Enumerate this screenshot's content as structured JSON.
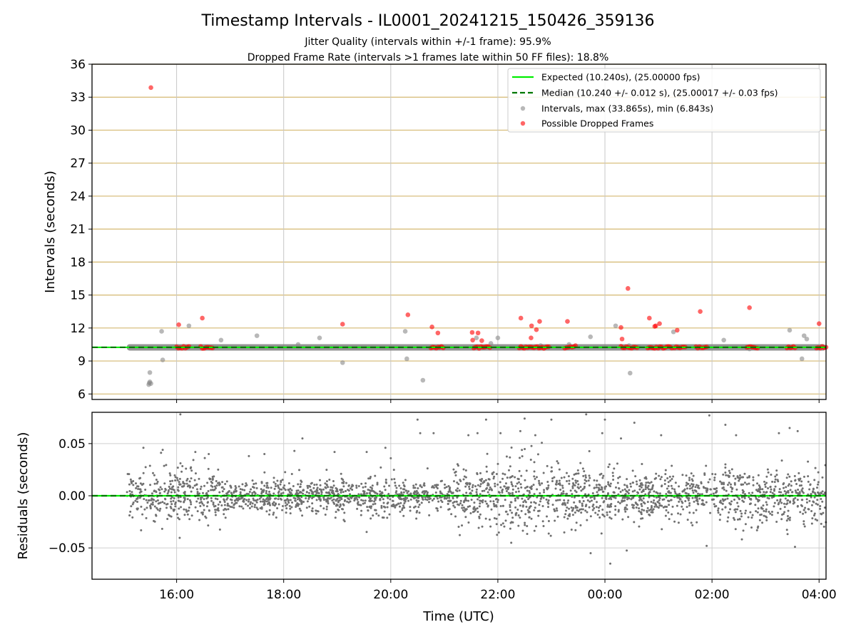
{
  "chart_data": [
    {
      "type": "scatter",
      "title": "Timestamp Intervals - IL0001_20241215_150426_359136",
      "subtitle_lines": [
        "Jitter Quality (intervals within +/-1 frame): 95.9%",
        "Dropped Frame Rate (intervals >1 frames late within 50 FF files): 18.8%"
      ],
      "xlabel": "",
      "ylabel": "Intervals (seconds)",
      "ylim": [
        5.5,
        36
      ],
      "xlim": [
        14.42,
        28.13
      ],
      "yticks": [
        6,
        9,
        12,
        15,
        18,
        21,
        24,
        27,
        30,
        33,
        36
      ],
      "ytick_labels": [
        "6",
        "9",
        "12",
        "15",
        "18",
        "21",
        "24",
        "27",
        "30",
        "33",
        "36"
      ],
      "horizontal_grid_color": "#d4b870",
      "vertical_grid_color": "#c8c8c8",
      "legend_position": "top-right",
      "legend": [
        "Expected (10.240s), (25.00000 fps)",
        "Median (10.240 +/- 0.012 s), (25.00017 +/- 0.03 fps)",
        "Intervals, max (33.865s), min (6.843s)",
        "Possible Dropped Frames"
      ],
      "lines": [
        {
          "name": "Expected",
          "y": 10.24,
          "color": "#00ee00",
          "style": "solid"
        },
        {
          "name": "Median",
          "y": 10.24,
          "color": "#007700",
          "style": "dashed"
        }
      ],
      "band": {
        "name": "Intervals",
        "x_range": [
          15.07,
          28.13
        ],
        "y": 10.24,
        "color": "#808080"
      },
      "series": [
        {
          "name": "Intervals",
          "color": "#888888",
          "x": [
            15.48,
            15.49,
            15.5,
            15.5,
            15.52,
            15.72,
            15.74,
            16.23,
            16.83,
            17.5,
            18.27,
            18.67,
            19.1,
            20.27,
            20.3,
            20.6,
            21.6,
            21.87,
            22.0,
            22.8,
            23.33,
            23.73,
            24.2,
            24.45,
            24.47,
            24.63,
            25.28,
            25.95,
            26.22,
            26.7,
            27.45,
            27.68,
            27.72,
            27.77
          ],
          "y": [
            6.85,
            7.0,
            7.1,
            7.95,
            6.95,
            11.7,
            9.1,
            12.2,
            10.9,
            11.3,
            10.5,
            11.1,
            8.85,
            11.7,
            9.2,
            7.25,
            11.1,
            10.6,
            11.1,
            10.4,
            10.5,
            11.2,
            12.2,
            10.4,
            7.9,
            10.3,
            11.65,
            10.2,
            10.9,
            10.1,
            11.8,
            9.2,
            11.3,
            11.0
          ]
        },
        {
          "name": "Possible Dropped Frames",
          "color": "#ff0000",
          "x": [
            15.52,
            16.04,
            16.48,
            19.1,
            20.32,
            20.77,
            20.88,
            21.52,
            21.53,
            21.63,
            21.7,
            22.43,
            22.62,
            22.63,
            22.72,
            22.78,
            23.3,
            23.45,
            24.3,
            24.32,
            24.43,
            24.83,
            24.93,
            24.95,
            25.02,
            25.35,
            25.78,
            26.7,
            28.0
          ],
          "y": [
            33.87,
            12.3,
            12.9,
            12.35,
            13.2,
            12.1,
            11.55,
            11.6,
            10.9,
            11.55,
            10.85,
            12.9,
            11.1,
            12.2,
            11.85,
            12.6,
            12.6,
            10.4,
            12.05,
            11.0,
            15.6,
            12.9,
            12.15,
            12.2,
            12.4,
            11.8,
            13.5,
            13.85,
            12.4
          ],
          "clusters": [
            {
              "x_range": [
                16.0,
                16.23
              ],
              "y": 10.24
            },
            {
              "x_range": [
                16.45,
                16.67
              ],
              "y": 10.24
            },
            {
              "x_range": [
                20.75,
                20.98
              ],
              "y": 10.24
            },
            {
              "x_range": [
                21.55,
                21.85
              ],
              "y": 10.24
            },
            {
              "x_range": [
                22.4,
                22.95
              ],
              "y": 10.24
            },
            {
              "x_range": [
                23.25,
                23.42
              ],
              "y": 10.24
            },
            {
              "x_range": [
                24.3,
                24.6
              ],
              "y": 10.24
            },
            {
              "x_range": [
                24.8,
                25.25
              ],
              "y": 10.24
            },
            {
              "x_range": [
                25.3,
                25.5
              ],
              "y": 10.24
            },
            {
              "x_range": [
                25.7,
                25.9
              ],
              "y": 10.24
            },
            {
              "x_range": [
                26.65,
                26.85
              ],
              "y": 10.24
            },
            {
              "x_range": [
                27.4,
                27.55
              ],
              "y": 10.24
            },
            {
              "x_range": [
                27.95,
                28.13
              ],
              "y": 10.24
            }
          ]
        }
      ]
    },
    {
      "type": "scatter",
      "xlabel": "Time (UTC)",
      "ylabel": "Residuals (seconds)",
      "xlim": [
        14.42,
        28.13
      ],
      "ylim": [
        -0.08,
        0.08
      ],
      "xticks": [
        16,
        18,
        20,
        22,
        24,
        26,
        28
      ],
      "xtick_labels": [
        "16:00",
        "18:00",
        "20:00",
        "22:00",
        "00:00",
        "02:00",
        "04:00"
      ],
      "yticks": [
        -0.05,
        0,
        0.05
      ],
      "ytick_labels": [
        "−0.05",
        "0.00",
        "0.05"
      ],
      "grid": true,
      "lines": [
        {
          "name": "Expected",
          "y": 0,
          "color": "#00ee00",
          "style": "solid"
        },
        {
          "name": "Median",
          "y": 0,
          "color": "#007700",
          "style": "dashed"
        }
      ],
      "series": [
        {
          "name": "Residuals",
          "color": "#707070",
          "x_range": [
            15.07,
            28.13
          ],
          "spread_sd": [
            0.012,
            0.014,
            0.007,
            0.009,
            0.008,
            0.009,
            0.007,
            0.014,
            0.016,
            0.015,
            0.013,
            0.012,
            0.012,
            0.013,
            0.014
          ],
          "x": [
            16.07,
            15.38,
            15.74,
            16.35,
            16.6,
            17.35,
            17.64,
            18.2,
            18.35,
            18.95,
            19.55,
            19.9,
            20.0,
            20.5,
            20.55,
            20.8,
            21.45,
            21.62,
            21.78,
            22.05,
            22.25,
            22.42,
            22.5,
            22.7,
            23.0,
            23.65,
            23.95,
            24.0,
            24.1,
            24.3,
            24.55,
            25.05,
            25.95,
            25.9,
            26.25,
            26.45,
            27.25,
            27.45,
            27.6,
            27.55
          ],
          "y": [
            0.078,
            0.046,
            0.044,
            0.042,
            0.04,
            0.038,
            0.04,
            0.043,
            0.055,
            0.042,
            0.042,
            0.046,
            0.036,
            0.073,
            0.06,
            0.06,
            0.058,
            0.06,
            0.073,
            0.06,
            -0.045,
            0.062,
            0.074,
            0.058,
            0.073,
            0.078,
            0.06,
            0.073,
            -0.065,
            0.055,
            0.07,
            0.058,
            0.077,
            -0.048,
            0.068,
            0.058,
            0.06,
            0.065,
            0.062,
            -0.049
          ]
        }
      ]
    }
  ]
}
